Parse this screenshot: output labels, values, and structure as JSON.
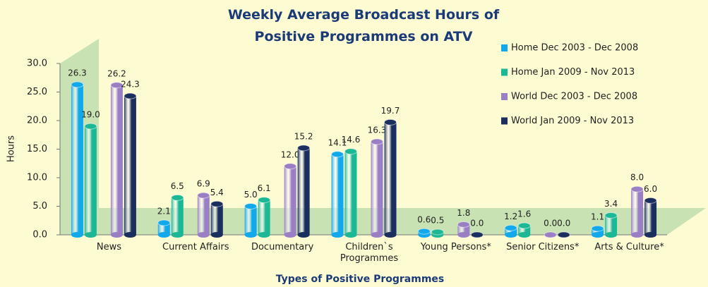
{
  "chart_data": {
    "type": "bar",
    "title": "Weekly Average Broadcast Hours of Positive Programmes on ATV",
    "y_label": "Hours",
    "x_label": "Types of Positive Programmes",
    "categories": [
      "News",
      "Current Affairs",
      "Documentary",
      "Children`s Programmes",
      "Young Persons*",
      "Senior Citizens*",
      "Arts & Culture*"
    ],
    "series": [
      {
        "name": "Home Dec 2003 - Dec 2008",
        "color": "#12a8ec",
        "values": [
          26.3,
          2.1,
          5,
          14.1,
          0.6,
          1.2,
          1.1
        ],
        "value_labels": [
          "26.3",
          "2.1",
          "5.0",
          "14.1",
          "0.6",
          "1.2",
          "1.1"
        ]
      },
      {
        "name": "Home Jan 2009 - Nov 2013",
        "color": "#1cb896",
        "values": [
          19,
          6.5,
          6.1,
          14.6,
          0.5,
          1.6,
          3.4
        ],
        "value_labels": [
          "19.0",
          "6.5",
          "6.1",
          "14.6",
          "0.5",
          "1.6",
          "3.4"
        ]
      },
      {
        "name": "World Dec 2003 - Dec 2008",
        "color": "#9b7fc4",
        "values": [
          26.2,
          6.9,
          12,
          16.3,
          1.8,
          0,
          8
        ],
        "value_labels": [
          "26.2",
          "6.9",
          "12.0",
          "16.3",
          "1.8",
          "0.0",
          "8.0"
        ]
      },
      {
        "name": "World Jan 2009 - Nov 2013",
        "color": "#1b2f5e",
        "values": [
          24.3,
          5.4,
          15.2,
          19.7,
          0,
          0,
          6
        ],
        "value_labels": [
          "24.3",
          "5.4",
          "15.2",
          "19.7",
          "0.0",
          "0.0",
          "6.0"
        ]
      }
    ],
    "ylim": [
      0,
      30
    ],
    "yticks": [
      {
        "value": 0,
        "label": "0.0"
      },
      {
        "value": 5,
        "label": "5.0"
      },
      {
        "value": 10,
        "label": "10.0"
      },
      {
        "value": 15,
        "label": "15.0"
      },
      {
        "value": 20,
        "label": "20.0"
      },
      {
        "value": 25,
        "label": "25.0"
      },
      {
        "value": 30,
        "label": "30.0"
      }
    ],
    "legend": "top-right"
  }
}
